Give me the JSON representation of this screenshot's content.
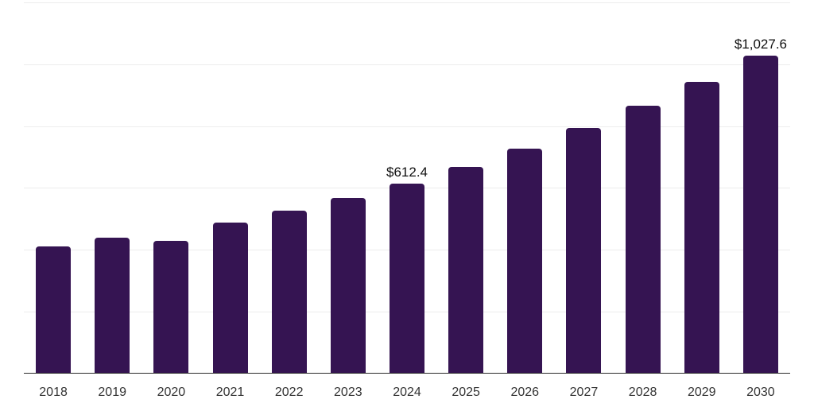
{
  "chart_data": {
    "type": "bar",
    "title": "",
    "xlabel": "",
    "ylabel": "",
    "categories": [
      "2018",
      "2019",
      "2020",
      "2021",
      "2022",
      "2023",
      "2024",
      "2025",
      "2026",
      "2027",
      "2028",
      "2029",
      "2030"
    ],
    "values": [
      409.4,
      438.7,
      428.4,
      488.2,
      525.9,
      567.1,
      612.4,
      667.5,
      727.6,
      793.1,
      864.5,
      942.4,
      1027.6
    ],
    "data_labels": {
      "2024": "$612.4",
      "2030": "$1,027.6"
    },
    "ylim": [
      0,
      1200
    ],
    "grid": true,
    "gridline_values": [
      200,
      400,
      600,
      800,
      1000,
      1200
    ],
    "y_axis_labels_visible": false,
    "legend": false,
    "colors": {
      "bar": "#351452",
      "gridline": "#ededed",
      "axis_line": "#2b2b2b",
      "tick_label": "#333333",
      "data_label": "#111111",
      "background": "#ffffff"
    }
  }
}
